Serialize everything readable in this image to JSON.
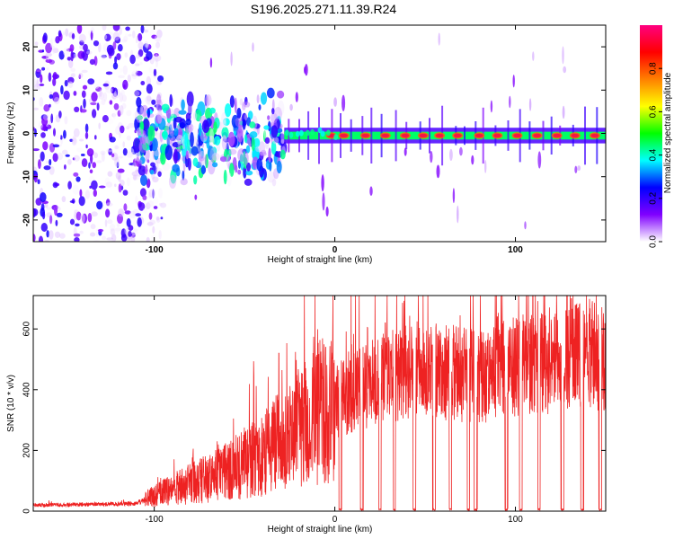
{
  "figure_title": "S196.2025.271.11.39.R24",
  "chart_data": [
    {
      "type": "heatmap",
      "title": "S196.2025.271.11.39.R24",
      "xlabel": "Height of straight line (km)",
      "ylabel": "Frequency (Hz)",
      "xlim": [
        -167,
        150
      ],
      "ylim": [
        -25,
        25
      ],
      "x_ticks": [
        -100,
        0,
        100
      ],
      "x_tick_labels": [
        "-100",
        "0",
        "100"
      ],
      "y_ticks": [
        -20,
        -10,
        0,
        10,
        20
      ],
      "y_tick_labels": [
        "-20",
        "-10",
        "0",
        "10",
        "20"
      ],
      "colorbar": {
        "label": "Normalized spectral amplitude",
        "range": [
          0,
          1
        ],
        "ticks": [
          0.0,
          0.2,
          0.4,
          0.6,
          0.8
        ],
        "tick_labels": [
          "0.0",
          "0.2",
          "0.4",
          "0.6",
          "0.8"
        ],
        "colors": [
          "#ffffff",
          "#8000ff",
          "#0000ff",
          "#00ffff",
          "#00ff00",
          "#ffff00",
          "#ff8000",
          "#ff0000",
          "#ff0080"
        ]
      },
      "regions": [
        {
          "x_range": [
            -167,
            -110
          ],
          "freq_range": [
            -25,
            25
          ],
          "amplitude": 0.15,
          "description": "scattered noise"
        },
        {
          "x_range": [
            -110,
            -28
          ],
          "freq_range": [
            -12,
            10
          ],
          "amplitude": 0.3,
          "description": "broadband blobs"
        },
        {
          "x_range": [
            -28,
            150
          ],
          "center_freq": -0.5,
          "amplitude": 0.9,
          "description": "narrow tone line"
        }
      ],
      "tone_peaks_x_km": [
        -2,
        5,
        17,
        28,
        39,
        49,
        58,
        68,
        80,
        90,
        101,
        112,
        123,
        133,
        144
      ]
    },
    {
      "type": "line",
      "xlabel": "Height of straight line (km)",
      "ylabel": "SNR (10 * v/v)",
      "xlim": [
        -167,
        150
      ],
      "ylim": [
        0,
        710
      ],
      "x_ticks": [
        -100,
        0,
        100
      ],
      "x_tick_labels": [
        "-100",
        "0",
        "100"
      ],
      "y_ticks": [
        0,
        200,
        400,
        600
      ],
      "y_tick_labels": [
        "0",
        "200",
        "400",
        "600"
      ],
      "color": "#ee2222",
      "series": [
        {
          "name": "SNR envelope",
          "x": [
            -167,
            -140,
            -110,
            -100,
            -90,
            -80,
            -70,
            -60,
            -50,
            -40,
            -30,
            -20,
            -15,
            -10,
            -5,
            0,
            5,
            10,
            20,
            30,
            40,
            50,
            60,
            70,
            80,
            90,
            100,
            110,
            120,
            130,
            140,
            150
          ],
          "values": [
            20,
            22,
            25,
            50,
            70,
            90,
            110,
            130,
            160,
            190,
            230,
            270,
            300,
            320,
            340,
            350,
            380,
            400,
            420,
            440,
            460,
            470,
            460,
            450,
            440,
            460,
            480,
            490,
            480,
            500,
            520,
            500
          ]
        }
      ],
      "dropout_x_km": [
        3,
        15,
        25,
        33,
        44,
        55,
        64,
        74,
        78,
        95,
        103,
        113,
        126,
        137,
        147
      ],
      "peaks": [
        {
          "x": -31,
          "value": 520
        },
        {
          "x": -5,
          "value": 540
        },
        {
          "x": 28,
          "value": 620
        },
        {
          "x": 90,
          "value": 640
        },
        {
          "x": 128,
          "value": 660
        },
        {
          "x": 131,
          "value": 700
        }
      ]
    }
  ]
}
